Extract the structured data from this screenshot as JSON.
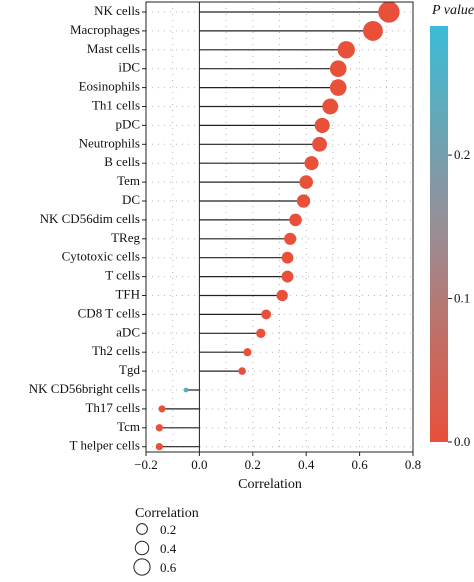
{
  "chart_data": {
    "type": "lollipop",
    "xlabel": "Correlation",
    "ylabel": "",
    "xlim": [
      -0.2,
      0.8
    ],
    "x_ticks": [
      -0.2,
      0.0,
      0.2,
      0.4,
      0.6,
      0.8
    ],
    "x_tick_labels": [
      "−0.2",
      "0.0",
      "0.2",
      "0.4",
      "0.6",
      "0.8"
    ],
    "grid": "dotted",
    "categories": [
      "NK cells",
      "Macrophages",
      "Mast cells",
      "iDC",
      "Eosinophils",
      "Th1 cells",
      "pDC",
      "Neutrophils",
      "B cells",
      "Tem",
      "DC",
      "NK CD56dim cells",
      "TReg",
      "Cytotoxic cells",
      "T cells",
      "TFH",
      "CD8 T cells",
      "aDC",
      "Th2 cells",
      "Tgd",
      "NK CD56bright cells",
      "Th17 cells",
      "Tcm",
      "T helper cells"
    ],
    "values": [
      0.71,
      0.65,
      0.55,
      0.52,
      0.52,
      0.49,
      0.46,
      0.45,
      0.42,
      0.4,
      0.39,
      0.36,
      0.34,
      0.33,
      0.33,
      0.31,
      0.25,
      0.23,
      0.18,
      0.16,
      -0.05,
      -0.14,
      -0.15,
      -0.15
    ],
    "p_values": [
      0.0,
      0.0,
      0.0,
      0.0,
      0.0,
      0.0,
      0.0,
      0.0,
      0.0,
      0.0,
      0.0,
      0.0,
      0.0,
      0.0,
      0.0,
      0.0,
      0.0,
      0.0,
      0.0,
      0.0,
      0.25,
      0.0,
      0.0,
      0.0
    ],
    "colorbar": {
      "title": "P value",
      "ticks": [
        0.0,
        0.1,
        0.2
      ],
      "tick_labels": [
        "0.0",
        "0.1",
        "0.2"
      ],
      "range": [
        0.0,
        0.29
      ],
      "color_low": "#e8503a",
      "color_mid": "#9a8d93",
      "color_high": "#3bbcd7"
    },
    "size_legend": {
      "title": "Correlation",
      "values": [
        0.2,
        0.4,
        0.6
      ],
      "labels": [
        "0.2",
        "0.4",
        "0.6"
      ]
    },
    "stem_color": "#222222",
    "point_color": "#e8503a"
  }
}
